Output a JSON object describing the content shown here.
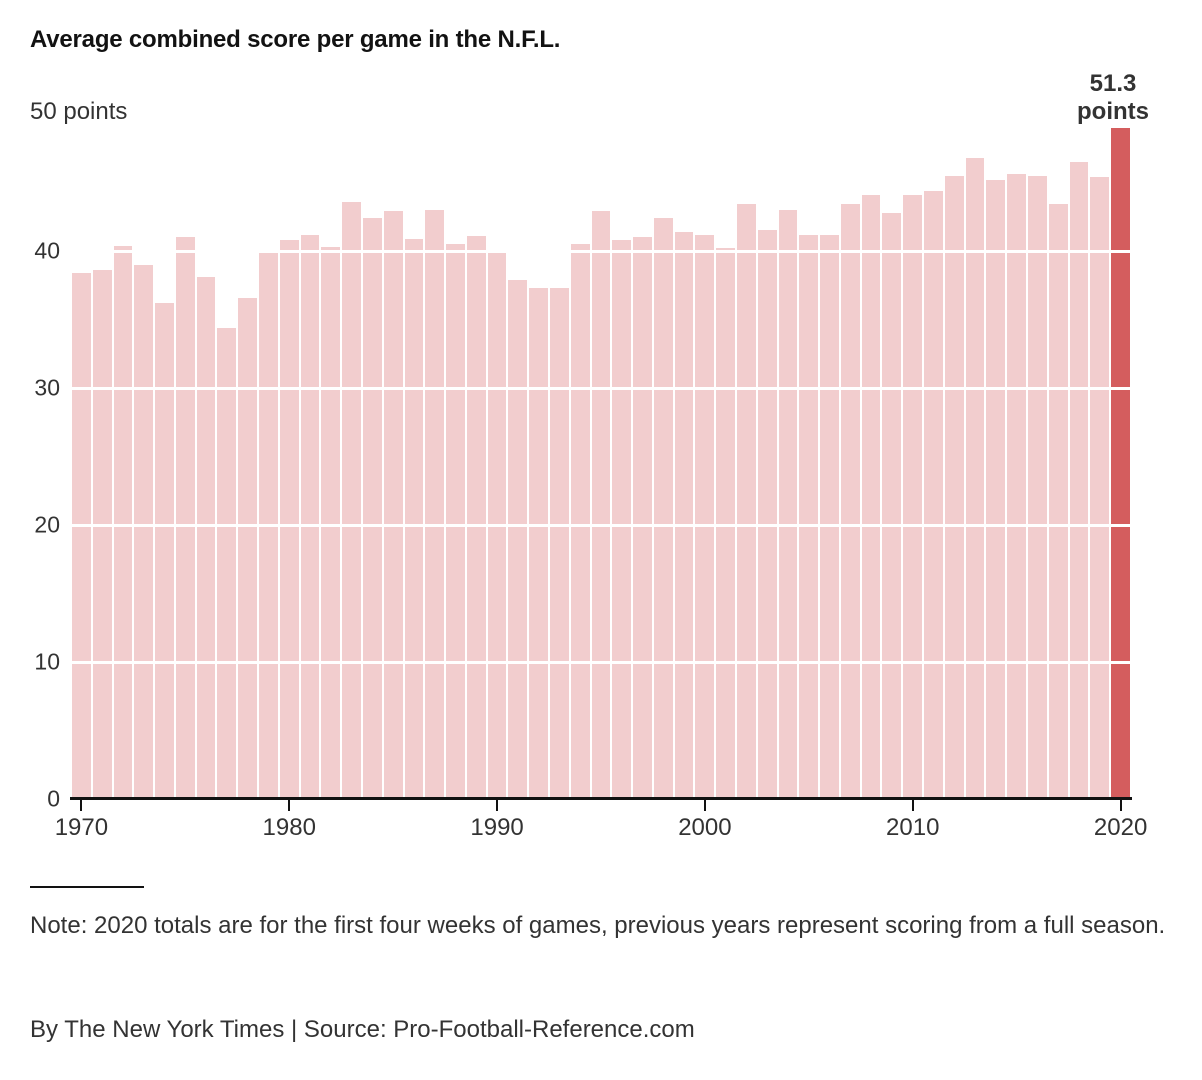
{
  "title": "Average combined score per game in the N.F.L.",
  "chart_data": {
    "type": "bar",
    "years": [
      1970,
      1971,
      1972,
      1973,
      1974,
      1975,
      1976,
      1977,
      1978,
      1979,
      1980,
      1981,
      1982,
      1983,
      1984,
      1985,
      1986,
      1987,
      1988,
      1989,
      1990,
      1991,
      1992,
      1993,
      1994,
      1995,
      1996,
      1997,
      1998,
      1999,
      2000,
      2001,
      2002,
      2003,
      2004,
      2005,
      2006,
      2007,
      2008,
      2009,
      2010,
      2011,
      2012,
      2013,
      2014,
      2015,
      2016,
      2017,
      2018,
      2019,
      2020
    ],
    "values": [
      38.4,
      38.6,
      40.4,
      39.0,
      36.2,
      41.0,
      38.1,
      34.4,
      36.6,
      39.9,
      40.8,
      41.2,
      40.3,
      43.6,
      42.4,
      42.9,
      40.9,
      43.0,
      40.5,
      41.1,
      40.0,
      37.9,
      37.3,
      37.3,
      40.5,
      42.9,
      40.8,
      41.0,
      42.4,
      41.4,
      41.2,
      40.2,
      43.4,
      41.5,
      43.0,
      41.2,
      41.2,
      43.4,
      44.1,
      42.8,
      44.1,
      44.4,
      45.5,
      46.8,
      45.2,
      45.6,
      45.5,
      43.4,
      46.5,
      45.4,
      51.3
    ],
    "ylim": [
      0,
      50
    ],
    "y_top_label": "50 points",
    "y_ticks": [
      0,
      10,
      20,
      30,
      40
    ],
    "x_ticks": [
      1970,
      1980,
      1990,
      2000,
      2010,
      2020
    ],
    "grid": true,
    "highlight_year": 2020,
    "highlight_value": 51.3,
    "annotation": {
      "value": "51.3",
      "unit": "points"
    },
    "colors": {
      "bar": "#f2cdce",
      "highlight_bar": "#d45d5e",
      "gridline": "#ffffff",
      "axis": "#121212",
      "text": "#333333"
    }
  },
  "footer": {
    "note": "Note: 2020 totals are for the first four weeks of games, previous years represent scoring from a full season.",
    "byline": "By The New York Times | Source: Pro-Football-Reference.com"
  }
}
